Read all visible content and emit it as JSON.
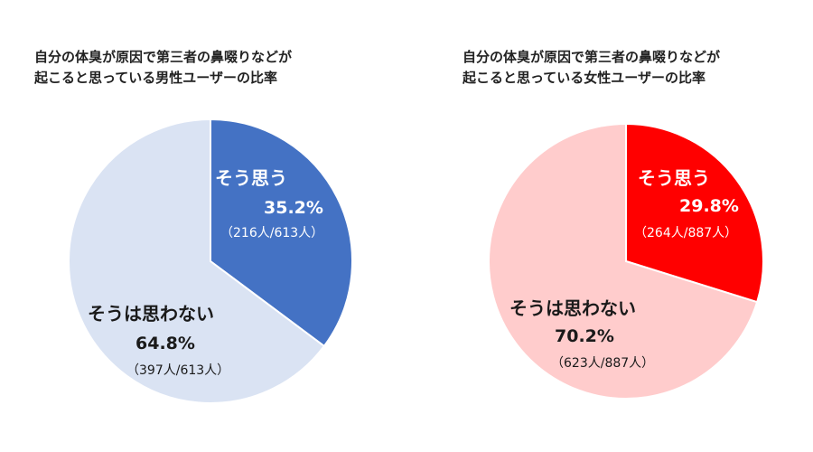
{
  "chart_data": [
    {
      "type": "pie",
      "title_lines": [
        "自分の体臭が原因で第三者の鼻啜りなどが",
        "起こると思っている男性ユーザーの比率"
      ],
      "slices": [
        {
          "label": "そう思う",
          "percent_label": "35.2%",
          "count_label": "（216人/613人）",
          "value": 35.2,
          "color": "#4472c4",
          "text": "light"
        },
        {
          "label": "そうは思わない",
          "percent_label": "64.8%",
          "count_label": "（397人/613人）",
          "value": 64.8,
          "color": "#dae3f3",
          "text": "dark"
        }
      ]
    },
    {
      "type": "pie",
      "title_lines": [
        "自分の体臭が原因で第三者の鼻啜りなどが",
        "起こると思っている女性ユーザーの比率"
      ],
      "slices": [
        {
          "label": "そう思う",
          "percent_label": "29.8%",
          "count_label": "（264人/887人）",
          "value": 29.8,
          "color": "#ff0000",
          "text": "light"
        },
        {
          "label": "そうは思わない",
          "percent_label": "70.2%",
          "count_label": "（623人/887人）",
          "value": 70.2,
          "color": "#ffcccc",
          "text": "dark"
        }
      ]
    }
  ]
}
